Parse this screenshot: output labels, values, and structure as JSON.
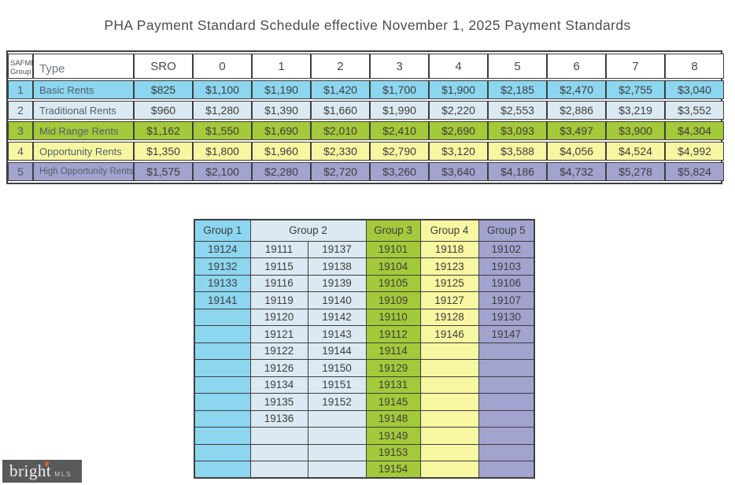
{
  "title": "PHA Payment Standard Schedule effective November 1, 2025 Payment Standards",
  "colors": {
    "group1": "#8dd6f0",
    "group2": "#dbeaf2",
    "group3": "#a4c93a",
    "group4": "#f8f7a1",
    "group5": "#a2a3ce",
    "border": "#3e3e3e",
    "logo_bg": "#58595b",
    "logo_accent": "#d95f2b"
  },
  "payment_table": {
    "header": {
      "group_line1": "SAFMR",
      "group_line2": "Group",
      "type_label": "Type",
      "bedroom_labels": [
        "SRO",
        "0",
        "1",
        "2",
        "3",
        "4",
        "5",
        "6",
        "7",
        "8"
      ]
    },
    "rows": [
      {
        "group": "1",
        "type": "Basic Rents",
        "color_key": "group1",
        "values": [
          "$825",
          "$1,100",
          "$1,190",
          "$1,420",
          "$1,700",
          "$1,900",
          "$2,185",
          "$2,470",
          "$2,755",
          "$3,040"
        ]
      },
      {
        "group": "2",
        "type": "Traditional Rents",
        "color_key": "group2",
        "values": [
          "$960",
          "$1,280",
          "$1,390",
          "$1,660",
          "$1,990",
          "$2,220",
          "$2,553",
          "$2,886",
          "$3,219",
          "$3,552"
        ]
      },
      {
        "group": "3",
        "type": "Mid Range Rents",
        "color_key": "group3",
        "values": [
          "$1,162",
          "$1,550",
          "$1,690",
          "$2,010",
          "$2,410",
          "$2,690",
          "$3,093",
          "$3,497",
          "$3,900",
          "$4,304"
        ]
      },
      {
        "group": "4",
        "type": "Opportunity Rents",
        "color_key": "group4",
        "values": [
          "$1,350",
          "$1,800",
          "$1,960",
          "$2,330",
          "$2,790",
          "$3,120",
          "$3,588",
          "$4,056",
          "$4,524",
          "$4,992"
        ]
      },
      {
        "group": "5",
        "type": "High Opportunity Rents",
        "color_key": "group5",
        "values": [
          "$1,575",
          "$2,100",
          "$2,280",
          "$2,720",
          "$3,260",
          "$3,640",
          "$4,186",
          "$4,732",
          "$5,278",
          "$5,824"
        ]
      }
    ]
  },
  "zip_table": {
    "headers": [
      {
        "label": "Group 1",
        "span": 1,
        "color_key": "group1"
      },
      {
        "label": "Group 2",
        "span": 2,
        "color_key": "group2"
      },
      {
        "label": "Group 3",
        "span": 1,
        "color_key": "group3"
      },
      {
        "label": "Group 4",
        "span": 1,
        "color_key": "group4"
      },
      {
        "label": "Group 5",
        "span": 1,
        "color_key": "group5"
      }
    ],
    "column_color_keys": [
      "group1",
      "group2",
      "group2",
      "group3",
      "group4",
      "group5"
    ],
    "rows": [
      [
        "19124",
        "19111",
        "19137",
        "19101",
        "19118",
        "19102"
      ],
      [
        "19132",
        "19115",
        "19138",
        "19104",
        "19123",
        "19103"
      ],
      [
        "19133",
        "19116",
        "19139",
        "19105",
        "19125",
        "19106"
      ],
      [
        "19141",
        "19119",
        "19140",
        "19109",
        "19127",
        "19107"
      ],
      [
        "",
        "19120",
        "19142",
        "19110",
        "19128",
        "19130"
      ],
      [
        "",
        "19121",
        "19143",
        "19112",
        "19146",
        "19147"
      ],
      [
        "",
        "19122",
        "19144",
        "19114",
        "",
        ""
      ],
      [
        "",
        "19126",
        "19150",
        "19129",
        "",
        ""
      ],
      [
        "",
        "19134",
        "19151",
        "19131",
        "",
        ""
      ],
      [
        "",
        "19135",
        "19152",
        "19145",
        "",
        ""
      ],
      [
        "",
        "19136",
        "",
        "19148",
        "",
        ""
      ],
      [
        "",
        "",
        "",
        "19149",
        "",
        ""
      ],
      [
        "",
        "",
        "",
        "19153",
        "",
        ""
      ],
      [
        "",
        "",
        "",
        "19154",
        "",
        ""
      ]
    ]
  },
  "logo": {
    "brand": "bright",
    "suffix": "MLS"
  }
}
